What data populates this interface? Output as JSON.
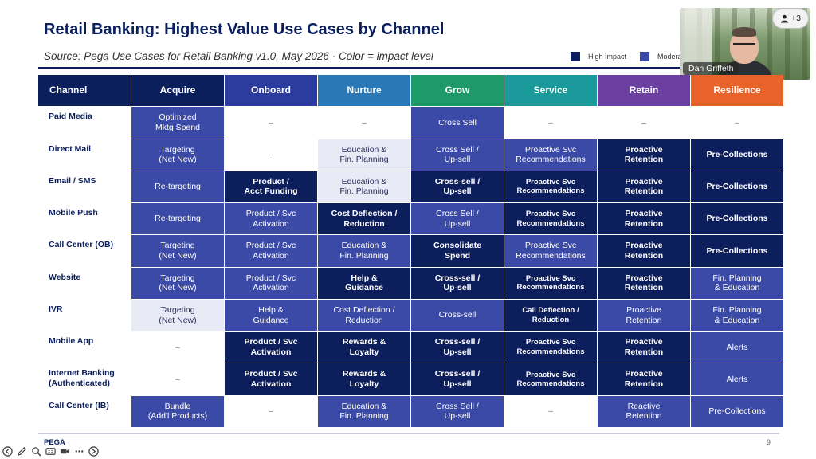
{
  "slide": {
    "title": "Retail Banking: Highest Value Use Cases by Channel",
    "subtitle": "Source: Pega Use Cases for Retail Banking v1.0, May 2026  ·  Color = impact level",
    "footer_logo": "PEGA",
    "page_number": "9"
  },
  "legend": {
    "high_label": "High Impact",
    "high_color": "#0d1e5c",
    "moderate_label": "Moderate",
    "moderate_color": "#3b4aa6"
  },
  "video": {
    "participant_name": "Dan Griffeth",
    "participants_more": "+3"
  },
  "table": {
    "corner_label": "Channel",
    "columns": [
      {
        "label": "Acquire",
        "color": "#0b1f5c"
      },
      {
        "label": "Onboard",
        "color": "#2b3c9e"
      },
      {
        "label": "Nurture",
        "color": "#2a78b5"
      },
      {
        "label": "Grow",
        "color": "#1e9a6a"
      },
      {
        "label": "Service",
        "color": "#1a9a9a"
      },
      {
        "label": "Retain",
        "color": "#6a3fa0"
      },
      {
        "label": "Resilience",
        "color": "#e8632a"
      }
    ],
    "rows": [
      {
        "channel": "Paid Media",
        "cells": [
          {
            "text": "Optimized\nMktg Spend",
            "impact": "mod"
          },
          {
            "text": "–",
            "impact": "none"
          },
          {
            "text": "–",
            "impact": "none"
          },
          {
            "text": "Cross Sell",
            "impact": "mod"
          },
          {
            "text": "–",
            "impact": "none"
          },
          {
            "text": "–",
            "impact": "none"
          },
          {
            "text": "–",
            "impact": "none"
          }
        ]
      },
      {
        "channel": "Direct Mail",
        "cells": [
          {
            "text": "Targeting\n(Net New)",
            "impact": "mod"
          },
          {
            "text": "–",
            "impact": "none"
          },
          {
            "text": "Education &\nFin. Planning",
            "impact": "low"
          },
          {
            "text": "Cross Sell /\nUp-sell",
            "impact": "mod"
          },
          {
            "text": "Proactive Svc\nRecommendations",
            "impact": "mod"
          },
          {
            "text": "Proactive\nRetention",
            "impact": "hi"
          },
          {
            "text": "Pre-Collections",
            "impact": "hi"
          }
        ]
      },
      {
        "channel": "Email / SMS",
        "cells": [
          {
            "text": "Re-targeting",
            "impact": "mod"
          },
          {
            "text": "Product /\nAcct Funding",
            "impact": "hi"
          },
          {
            "text": "Education &\nFin. Planning",
            "impact": "low"
          },
          {
            "text": "Cross-sell /\nUp-sell",
            "impact": "hi"
          },
          {
            "text": "Proactive Svc\nRecommendations",
            "impact": "hi",
            "small": true
          },
          {
            "text": "Proactive\nRetention",
            "impact": "hi"
          },
          {
            "text": "Pre-Collections",
            "impact": "hi"
          }
        ]
      },
      {
        "channel": "Mobile Push",
        "cells": [
          {
            "text": "Re-targeting",
            "impact": "mod"
          },
          {
            "text": "Product / Svc\nActivation",
            "impact": "mod"
          },
          {
            "text": "Cost Deflection /\nReduction",
            "impact": "hi"
          },
          {
            "text": "Cross Sell /\nUp-sell",
            "impact": "mod"
          },
          {
            "text": "Proactive Svc\nRecommendations",
            "impact": "hi",
            "small": true
          },
          {
            "text": "Proactive\nRetention",
            "impact": "hi"
          },
          {
            "text": "Pre-Collections",
            "impact": "hi"
          }
        ]
      },
      {
        "channel": "Call Center (OB)",
        "cells": [
          {
            "text": "Targeting\n(Net New)",
            "impact": "mod"
          },
          {
            "text": "Product / Svc\nActivation",
            "impact": "mod"
          },
          {
            "text": "Education &\nFin. Planning",
            "impact": "mod"
          },
          {
            "text": "Consolidate\nSpend",
            "impact": "hi"
          },
          {
            "text": "Proactive Svc\nRecommendations",
            "impact": "mod"
          },
          {
            "text": "Proactive\nRetention",
            "impact": "hi"
          },
          {
            "text": "Pre-Collections",
            "impact": "hi"
          }
        ]
      },
      {
        "channel": "Website",
        "cells": [
          {
            "text": "Targeting\n(Net New)",
            "impact": "mod"
          },
          {
            "text": "Product / Svc\nActivation",
            "impact": "mod"
          },
          {
            "text": "Help &\nGuidance",
            "impact": "hi"
          },
          {
            "text": "Cross-sell /\nUp-sell",
            "impact": "hi"
          },
          {
            "text": "Proactive Svc\nRecommendations",
            "impact": "hi",
            "small": true
          },
          {
            "text": "Proactive\nRetention",
            "impact": "hi"
          },
          {
            "text": "Fin. Planning\n& Education",
            "impact": "mod"
          }
        ]
      },
      {
        "channel": "IVR",
        "cells": [
          {
            "text": "Targeting\n(Net New)",
            "impact": "low"
          },
          {
            "text": "Help &\nGuidance",
            "impact": "mod"
          },
          {
            "text": "Cost Deflection /\nReduction",
            "impact": "mod"
          },
          {
            "text": "Cross-sell",
            "impact": "mod"
          },
          {
            "text": "Call Deflection /\nReduction",
            "impact": "hi",
            "small": true
          },
          {
            "text": "Proactive\nRetention",
            "impact": "mod"
          },
          {
            "text": "Fin. Planning\n& Education",
            "impact": "mod"
          }
        ]
      },
      {
        "channel": "Mobile App",
        "cells": [
          {
            "text": "–",
            "impact": "none"
          },
          {
            "text": "Product / Svc\nActivation",
            "impact": "hi"
          },
          {
            "text": "Rewards &\nLoyalty",
            "impact": "hi"
          },
          {
            "text": "Cross-sell /\nUp-sell",
            "impact": "hi"
          },
          {
            "text": "Proactive Svc\nRecommendations",
            "impact": "hi",
            "small": true
          },
          {
            "text": "Proactive\nRetention",
            "impact": "hi"
          },
          {
            "text": "Alerts",
            "impact": "mod"
          }
        ]
      },
      {
        "channel": "Internet Banking\n(Authenticated)",
        "cells": [
          {
            "text": "–",
            "impact": "none"
          },
          {
            "text": "Product / Svc\nActivation",
            "impact": "hi"
          },
          {
            "text": "Rewards &\nLoyalty",
            "impact": "hi"
          },
          {
            "text": "Cross-sell /\nUp-sell",
            "impact": "hi"
          },
          {
            "text": "Proactive Svc\nRecommendations",
            "impact": "hi",
            "small": true
          },
          {
            "text": "Proactive\nRetention",
            "impact": "hi"
          },
          {
            "text": "Alerts",
            "impact": "mod"
          }
        ]
      },
      {
        "channel": "Call Center (IB)",
        "cells": [
          {
            "text": "Bundle\n(Add'l Products)",
            "impact": "mod"
          },
          {
            "text": "–",
            "impact": "none"
          },
          {
            "text": "Education &\nFin. Planning",
            "impact": "mod"
          },
          {
            "text": "Cross Sell /\nUp-sell",
            "impact": "mod"
          },
          {
            "text": "–",
            "impact": "none"
          },
          {
            "text": "Reactive\nRetention",
            "impact": "mod"
          },
          {
            "text": "Pre-Collections",
            "impact": "mod"
          }
        ]
      }
    ]
  },
  "toolbar": {
    "icons": [
      "back-icon",
      "pen-icon",
      "search-icon",
      "captions-icon",
      "camera-icon",
      "more-icon",
      "forward-icon"
    ]
  }
}
